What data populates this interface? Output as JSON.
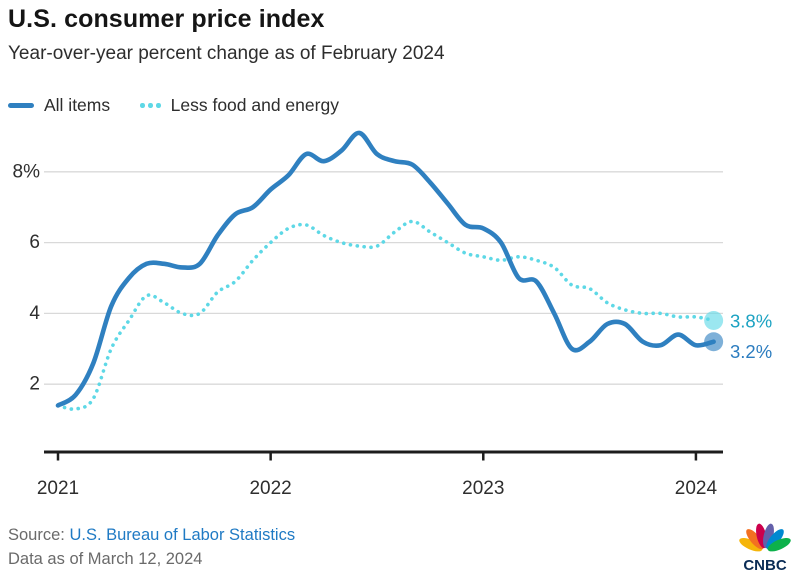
{
  "header": {
    "title": "U.S. consumer price index",
    "subtitle": "Year-over-year percent change as of February 2024"
  },
  "legend": {
    "items": [
      {
        "label": "All items"
      },
      {
        "label": "Less food and energy"
      }
    ]
  },
  "chart_data": {
    "type": "line",
    "title": "U.S. consumer price index",
    "subtitle": "Year-over-year percent change as of February 2024",
    "x_start": "2021-01",
    "x_end": "2024-02",
    "x_tick_labels": [
      "2021",
      "2022",
      "2023",
      "2024"
    ],
    "x_tick_month_index": [
      0,
      12,
      24,
      36
    ],
    "y_ticks": [
      8,
      6,
      4,
      2
    ],
    "y_tick_labels": [
      "8%",
      "6",
      "4",
      "2"
    ],
    "ylim": [
      0,
      9.6
    ],
    "grid": "horizontal-only",
    "legend_position": "top-left",
    "colors": {
      "grid": "#d9d9d9",
      "axis": "#1d1d1d",
      "tick_text": "#2e2e2e"
    },
    "series": [
      {
        "name": "Less food and energy",
        "style": "dotted",
        "color": "#5ed8e6",
        "label_color": "#1ba2c2",
        "end_label": "3.8%",
        "values": [
          1.4,
          1.3,
          1.6,
          3.0,
          3.8,
          4.5,
          4.3,
          4.0,
          4.0,
          4.6,
          4.9,
          5.5,
          6.0,
          6.4,
          6.5,
          6.2,
          6.0,
          5.9,
          5.9,
          6.3,
          6.6,
          6.3,
          6.0,
          5.7,
          5.6,
          5.5,
          5.6,
          5.5,
          5.3,
          4.8,
          4.7,
          4.3,
          4.1,
          4.0,
          4.0,
          3.9,
          3.9,
          3.8
        ]
      },
      {
        "name": "All items",
        "style": "solid",
        "color": "#2f80c0",
        "label_color": "#2b7cbf",
        "end_label": "3.2%",
        "values": [
          1.4,
          1.7,
          2.6,
          4.2,
          5.0,
          5.4,
          5.4,
          5.3,
          5.4,
          6.2,
          6.8,
          7.0,
          7.5,
          7.9,
          8.5,
          8.3,
          8.6,
          9.1,
          8.5,
          8.3,
          8.2,
          7.7,
          7.1,
          6.5,
          6.4,
          6.0,
          5.0,
          4.9,
          4.0,
          3.0,
          3.2,
          3.7,
          3.7,
          3.2,
          3.1,
          3.4,
          3.1,
          3.2
        ]
      }
    ]
  },
  "footer": {
    "source_prefix": "Source: ",
    "source_link": "U.S. Bureau of Labor Statistics",
    "data_as_of": "Data as of March 12, 2024",
    "brand": "CNBC",
    "brand_color": "#0a2c55",
    "peacock_colors": [
      "#f5b50a",
      "#f37021",
      "#cc004c",
      "#6460aa",
      "#0089d0",
      "#0db14b"
    ]
  }
}
